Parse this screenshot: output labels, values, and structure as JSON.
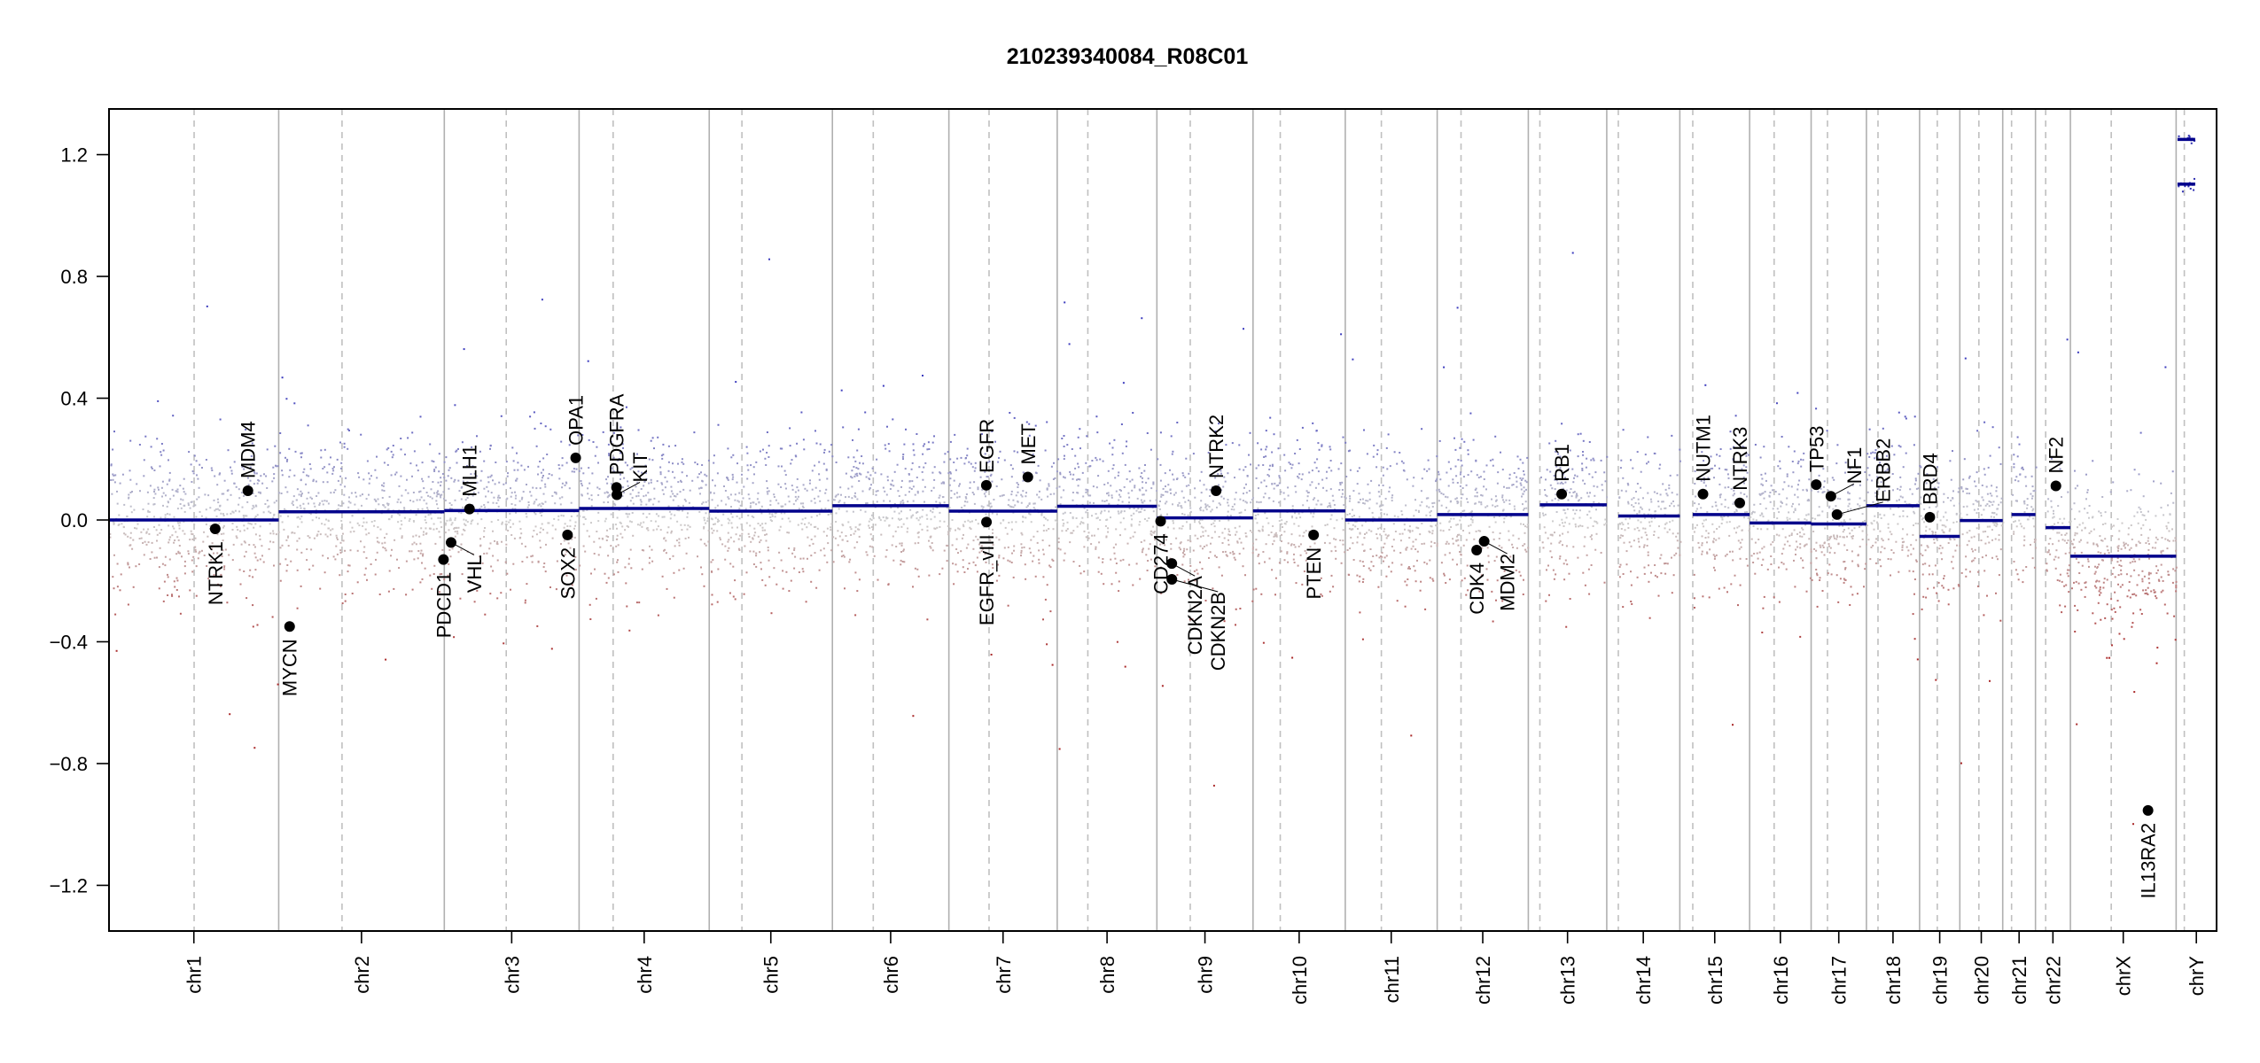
{
  "chart_data": {
    "type": "scatter",
    "title": "210239340084_R08C01",
    "xlabel": "",
    "ylabel": "",
    "ylim": [
      -1.35,
      1.35
    ],
    "yticks": [
      -1.2,
      -0.8,
      -0.4,
      0.0,
      0.4,
      0.8,
      1.2
    ],
    "ytick_labels": [
      "−1.2",
      "−0.8",
      "−0.4",
      "0.0",
      "0.4",
      "0.8",
      "1.2"
    ],
    "grid": false,
    "colors": {
      "segment": "#00008B",
      "gene": "#000000",
      "gain": "#3a3ab0",
      "loss": "#a83030",
      "neutral": "#c8c8c8",
      "chrom_line": "#b0b0b0",
      "centromere_line": "#c0c0c0"
    },
    "chromosomes": [
      {
        "name": "chr1",
        "length_mb": 249.25,
        "centromere_mb": 125,
        "segments": [
          {
            "start": 0,
            "end": 249.25,
            "value": 0.0
          }
        ]
      },
      {
        "name": "chr2",
        "length_mb": 243.2,
        "centromere_mb": 93,
        "segments": [
          {
            "start": 0,
            "end": 243.2,
            "value": 0.027
          }
        ]
      },
      {
        "name": "chr3",
        "length_mb": 198.0,
        "centromere_mb": 91,
        "segments": [
          {
            "start": 0,
            "end": 198.0,
            "value": 0.031
          }
        ]
      },
      {
        "name": "chr4",
        "length_mb": 191.15,
        "centromere_mb": 50,
        "segments": [
          {
            "start": 0,
            "end": 191.15,
            "value": 0.038
          }
        ]
      },
      {
        "name": "chr5",
        "length_mb": 180.9,
        "centromere_mb": 48,
        "segments": [
          {
            "start": 0,
            "end": 180.9,
            "value": 0.029
          }
        ]
      },
      {
        "name": "chr6",
        "length_mb": 171.1,
        "centromere_mb": 60,
        "segments": [
          {
            "start": 0,
            "end": 171.1,
            "value": 0.047
          }
        ]
      },
      {
        "name": "chr7",
        "length_mb": 159.1,
        "centromere_mb": 59,
        "segments": [
          {
            "start": 0,
            "end": 159.1,
            "value": 0.029
          }
        ]
      },
      {
        "name": "chr8",
        "length_mb": 146.4,
        "centromere_mb": 45,
        "segments": [
          {
            "start": 0,
            "end": 146.4,
            "value": 0.045
          }
        ]
      },
      {
        "name": "chr9",
        "length_mb": 141.2,
        "centromere_mb": 49,
        "segments": [
          {
            "start": 0,
            "end": 141.2,
            "value": 0.007
          }
        ]
      },
      {
        "name": "chr10",
        "length_mb": 135.5,
        "centromere_mb": 40,
        "segments": [
          {
            "start": 0,
            "end": 135.5,
            "value": 0.03
          }
        ]
      },
      {
        "name": "chr11",
        "length_mb": 135.0,
        "centromere_mb": 53,
        "segments": [
          {
            "start": 0,
            "end": 135.0,
            "value": 0.0
          }
        ]
      },
      {
        "name": "chr12",
        "length_mb": 133.85,
        "centromere_mb": 35,
        "segments": [
          {
            "start": 0,
            "end": 133.85,
            "value": 0.018
          }
        ]
      },
      {
        "name": "chr13",
        "length_mb": 115.2,
        "centromere_mb": 17,
        "segments": [
          {
            "start": 17,
            "end": 115.2,
            "value": 0.05
          }
        ]
      },
      {
        "name": "chr14",
        "length_mb": 107.35,
        "centromere_mb": 17,
        "segments": [
          {
            "start": 17,
            "end": 107.35,
            "value": 0.013
          }
        ]
      },
      {
        "name": "chr15",
        "length_mb": 102.5,
        "centromere_mb": 19,
        "segments": [
          {
            "start": 19,
            "end": 102.5,
            "value": 0.018
          }
        ]
      },
      {
        "name": "chr16",
        "length_mb": 90.35,
        "centromere_mb": 36,
        "segments": [
          {
            "start": 0,
            "end": 90.35,
            "value": -0.01
          }
        ]
      },
      {
        "name": "chr17",
        "length_mb": 81.2,
        "centromere_mb": 24,
        "segments": [
          {
            "start": 0,
            "end": 81.2,
            "value": -0.013
          }
        ]
      },
      {
        "name": "chr18",
        "length_mb": 78.1,
        "centromere_mb": 17,
        "segments": [
          {
            "start": 0,
            "end": 78.1,
            "value": 0.047
          }
        ]
      },
      {
        "name": "chr19",
        "length_mb": 59.1,
        "centromere_mb": 26,
        "segments": [
          {
            "start": 0,
            "end": 59.1,
            "value": -0.054
          }
        ]
      },
      {
        "name": "chr20",
        "length_mb": 63.0,
        "centromere_mb": 28,
        "segments": [
          {
            "start": 0,
            "end": 63.0,
            "value": -0.002
          }
        ]
      },
      {
        "name": "chr21",
        "length_mb": 48.1,
        "centromere_mb": 13,
        "segments": [
          {
            "start": 13,
            "end": 48.1,
            "value": 0.018
          }
        ]
      },
      {
        "name": "chr22",
        "length_mb": 51.3,
        "centromere_mb": 15,
        "segments": [
          {
            "start": 15,
            "end": 51.3,
            "value": -0.025
          }
        ]
      },
      {
        "name": "chrX",
        "length_mb": 155.3,
        "centromere_mb": 60,
        "segments": [
          {
            "start": 0,
            "end": 155.3,
            "value": -0.119
          }
        ]
      },
      {
        "name": "chrY",
        "length_mb": 59.4,
        "centromere_mb": 12,
        "segments": [
          {
            "start": 2,
            "end": 28,
            "value": 1.25
          },
          {
            "start": 2,
            "end": 28,
            "value": 1.103
          }
        ]
      }
    ],
    "genes": [
      {
        "name": "NTRK1",
        "chr": "chr1",
        "pos_mb": 156,
        "value": -0.029
      },
      {
        "name": "MDM4",
        "chr": "chr1",
        "pos_mb": 204,
        "value": 0.096
      },
      {
        "name": "MYCN",
        "chr": "chr2",
        "pos_mb": 16,
        "value": -0.35
      },
      {
        "name": "PDCD1",
        "chr": "chr2",
        "pos_mb": 242,
        "value": -0.13
      },
      {
        "name": "VHL",
        "chr": "chr3",
        "pos_mb": 10,
        "value": -0.074
      },
      {
        "name": "MLH1",
        "chr": "chr3",
        "pos_mb": 37,
        "value": 0.036
      },
      {
        "name": "SOX2",
        "chr": "chr3",
        "pos_mb": 181,
        "value": -0.049
      },
      {
        "name": "OPA1",
        "chr": "chr3",
        "pos_mb": 193,
        "value": 0.204
      },
      {
        "name": "PDGFRA",
        "chr": "chr4",
        "pos_mb": 55,
        "value": 0.107
      },
      {
        "name": "KIT",
        "chr": "chr4",
        "pos_mb": 55.5,
        "value": 0.083
      },
      {
        "name": "EGFR",
        "chr": "chr7",
        "pos_mb": 55,
        "value": 0.114
      },
      {
        "name": "EGFR_vIII",
        "chr": "chr7",
        "pos_mb": 55.2,
        "value": -0.007
      },
      {
        "name": "MET",
        "chr": "chr7",
        "pos_mb": 116,
        "value": 0.141
      },
      {
        "name": "CD274",
        "chr": "chr9",
        "pos_mb": 5.5,
        "value": -0.004
      },
      {
        "name": "CDKN2A",
        "chr": "chr9",
        "pos_mb": 21.9,
        "value": -0.143
      },
      {
        "name": "CDKN2B",
        "chr": "chr9",
        "pos_mb": 22.0,
        "value": -0.195
      },
      {
        "name": "NTRK2",
        "chr": "chr9",
        "pos_mb": 87,
        "value": 0.096
      },
      {
        "name": "PTEN",
        "chr": "chr10",
        "pos_mb": 89,
        "value": -0.049
      },
      {
        "name": "CDK4",
        "chr": "chr12",
        "pos_mb": 58,
        "value": -0.099
      },
      {
        "name": "MDM2",
        "chr": "chr12",
        "pos_mb": 69,
        "value": -0.07
      },
      {
        "name": "RB1",
        "chr": "chr13",
        "pos_mb": 49,
        "value": 0.085
      },
      {
        "name": "NUTM1",
        "chr": "chr15",
        "pos_mb": 34,
        "value": 0.085
      },
      {
        "name": "NTRK3",
        "chr": "chr15",
        "pos_mb": 88,
        "value": 0.056
      },
      {
        "name": "TP53",
        "chr": "chr17",
        "pos_mb": 7.5,
        "value": 0.116
      },
      {
        "name": "NF1",
        "chr": "chr17",
        "pos_mb": 29,
        "value": 0.078
      },
      {
        "name": "ERBB2",
        "chr": "chr17",
        "pos_mb": 38,
        "value": 0.018
      },
      {
        "name": "BRD4",
        "chr": "chr19",
        "pos_mb": 15,
        "value": 0.009
      },
      {
        "name": "NF2",
        "chr": "chr22",
        "pos_mb": 30,
        "value": 0.112
      },
      {
        "name": "IL13RA2",
        "chr": "chrX",
        "pos_mb": 114,
        "value": -0.954
      }
    ]
  }
}
